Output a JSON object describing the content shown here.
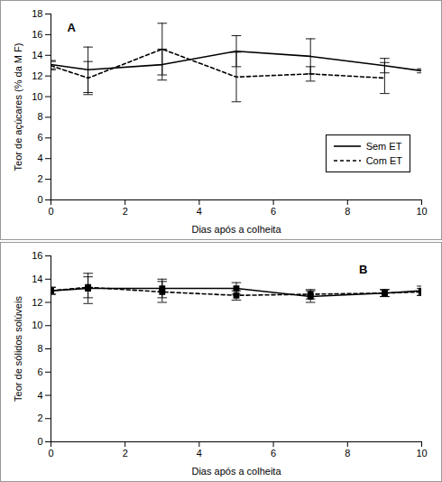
{
  "chart_data": [
    {
      "type": "line",
      "annotation": "A",
      "xlabel": "Dias após a colheita",
      "ylabel": "Teor de açúcares (% da M F)",
      "x": [
        0,
        1,
        3,
        5,
        7,
        9,
        10
      ],
      "xlim": [
        0,
        10
      ],
      "xticks": [
        0,
        2,
        4,
        6,
        8,
        10
      ],
      "ylim": [
        0,
        18
      ],
      "yticks": [
        0,
        2,
        4,
        6,
        8,
        10,
        12,
        14,
        16,
        18
      ],
      "grid": false,
      "legend": "bottom-right",
      "series": [
        {
          "name": "Sem ET",
          "color": "#000000",
          "line_style": "solid",
          "values": [
            13.1,
            12.6,
            13.1,
            14.4,
            13.9,
            13.0,
            12.5
          ],
          "errors": [
            0.4,
            2.2,
            1.5,
            1.5,
            1.7,
            0.7,
            0.2
          ]
        },
        {
          "name": "Com ET",
          "color": "#000000",
          "line_style": "dashed",
          "values": [
            13.0,
            11.8,
            14.6,
            11.9,
            12.2,
            11.8,
            null
          ],
          "errors": [
            0.4,
            1.6,
            2.5,
            2.4,
            0.7,
            1.5,
            null
          ]
        }
      ]
    },
    {
      "type": "line",
      "annotation": "B",
      "xlabel": "Dias após a colheita",
      "ylabel": "Teor de sólidos solúveis",
      "x": [
        0,
        1,
        3,
        5,
        7,
        9,
        10
      ],
      "xlim": [
        0,
        10
      ],
      "xticks": [
        0,
        2,
        4,
        6,
        8,
        10
      ],
      "ylim": [
        0,
        16
      ],
      "yticks": [
        0,
        2,
        4,
        6,
        8,
        10,
        12,
        14,
        16
      ],
      "grid": false,
      "series": [
        {
          "name": "Sem ET",
          "color": "#000000",
          "line_style": "solid",
          "marker": "square",
          "values": [
            13.0,
            13.2,
            13.2,
            13.2,
            12.5,
            12.8,
            13.0
          ],
          "errors": [
            0.3,
            1.3,
            0.8,
            0.5,
            0.5,
            0.3,
            0.4
          ]
        },
        {
          "name": "Com ET",
          "color": "#000000",
          "line_style": "dashed",
          "marker": "square",
          "values": [
            13.0,
            13.3,
            12.9,
            12.6,
            12.7,
            12.8,
            12.9
          ],
          "errors": [
            0.3,
            0.9,
            0.9,
            0.4,
            0.4,
            0.3,
            0.3
          ]
        }
      ]
    }
  ]
}
